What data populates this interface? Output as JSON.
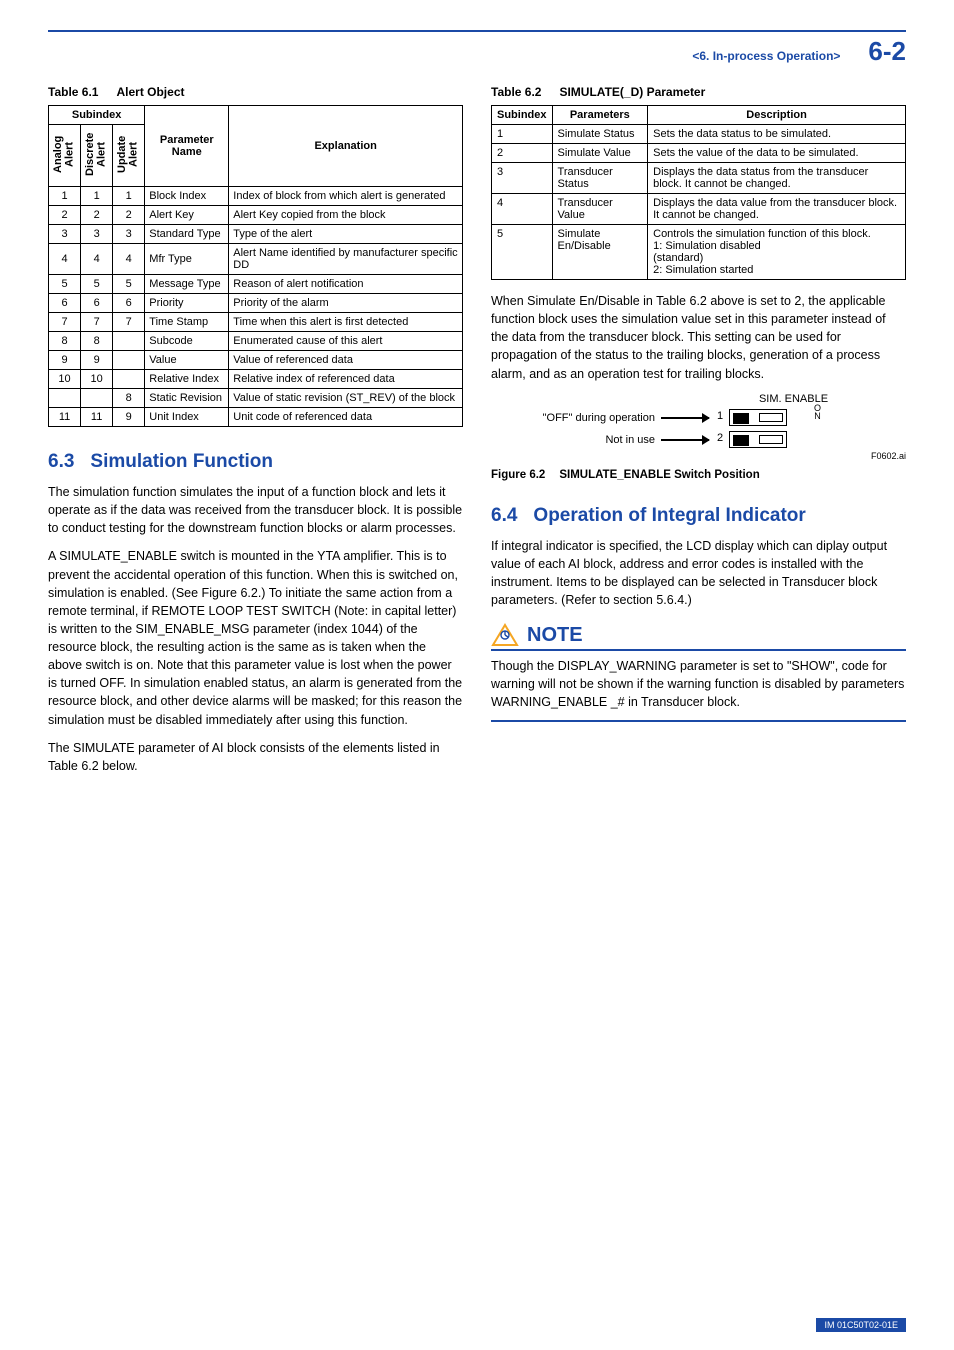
{
  "header": {
    "section": "<6.  In-process Operation>",
    "page": "6-2"
  },
  "left": {
    "table61_caption_num": "Table 6.1",
    "table61_caption_title": "Alert Object",
    "table61": {
      "subindex_head": "Subindex",
      "rot_cols": [
        "Analog Alert",
        "Discrete Alert",
        "Update Alert"
      ],
      "param_head": "Parameter Name",
      "expl_head": "Explanation",
      "rows": [
        {
          "a": "1",
          "b": "1",
          "c": "1",
          "p": "Block Index",
          "e": "Index of block from which alert is generated"
        },
        {
          "a": "2",
          "b": "2",
          "c": "2",
          "p": "Alert Key",
          "e": "Alert Key copied from the block"
        },
        {
          "a": "3",
          "b": "3",
          "c": "3",
          "p": "Standard Type",
          "e": "Type of the alert"
        },
        {
          "a": "4",
          "b": "4",
          "c": "4",
          "p": "Mfr Type",
          "e": "Alert Name identified by manufacturer specific DD"
        },
        {
          "a": "5",
          "b": "5",
          "c": "5",
          "p": "Message Type",
          "e": "Reason of alert notification"
        },
        {
          "a": "6",
          "b": "6",
          "c": "6",
          "p": "Priority",
          "e": "Priority of the alarm"
        },
        {
          "a": "7",
          "b": "7",
          "c": "7",
          "p": "Time Stamp",
          "e": "Time when this alert is first detected"
        },
        {
          "a": "8",
          "b": "8",
          "c": "",
          "p": "Subcode",
          "e": "Enumerated cause of this alert"
        },
        {
          "a": "9",
          "b": "9",
          "c": "",
          "p": "Value",
          "e": "Value of referenced data"
        },
        {
          "a": "10",
          "b": "10",
          "c": "",
          "p": "Relative Index",
          "e": "Relative index of referenced data"
        },
        {
          "a": "",
          "b": "",
          "c": "8",
          "p": "Static Revision",
          "e": "Value of static revision (ST_REV) of the block"
        },
        {
          "a": "11",
          "b": "11",
          "c": "9",
          "p": "Unit Index",
          "e": "Unit code of referenced data"
        }
      ]
    },
    "sec63_num": "6.3",
    "sec63_title": "Simulation Function",
    "para63_1": "The simulation function simulates the input of a function block and lets it operate as if the data was received from the transducer block. It is possible to conduct testing for the downstream function blocks or alarm processes.",
    "para63_2": "A SIMULATE_ENABLE switch is mounted in the YTA amplifier. This is to prevent the accidental operation of this function. When this is switched on, simulation is enabled. (See Figure 6.2.) To initiate the same action from a remote terminal, if REMOTE LOOP TEST SWITCH (Note: in capital letter) is written to the SIM_ENABLE_MSG parameter (index 1044) of the resource block, the resulting action is the same as is taken when the above switch is on. Note that this parameter value is lost when the power is turned OFF. In simulation enabled status, an alarm is generated from the resource block, and other device alarms will be masked; for this reason the simulation must be disabled immediately after using this function.",
    "para63_3": "The SIMULATE parameter of AI block consists of the elements listed in Table 6.2 below."
  },
  "right": {
    "table62_caption_num": "Table 6.2",
    "table62_caption_title": "SIMULATE(_D) Parameter",
    "table62": {
      "h1": "Subindex",
      "h2": "Parameters",
      "h3": "Description",
      "rows": [
        {
          "s": "1",
          "p": "Simulate Status",
          "d": "Sets the data status to be simulated."
        },
        {
          "s": "2",
          "p": "Simulate Value",
          "d": "Sets the value of the data to be simulated."
        },
        {
          "s": "3",
          "p": "Transducer Status",
          "d": "Displays the data status from the transducer block. It cannot be changed."
        },
        {
          "s": "4",
          "p": "Transducer Value",
          "d": "Displays the data value from the transducer block. It cannot be changed."
        },
        {
          "s": "5",
          "p": "Simulate En/Disable",
          "d": "Controls the simulation function of this block.\n    1: Simulation disabled\n        (standard)\n    2: Simulation started"
        }
      ]
    },
    "para_after_62": "When Simulate En/Disable in Table 6.2 above is set to 2, the applicable function block uses the simulation value set in this parameter instead of the data from the transducer block. This setting can be used for propagation of the status to the trailing blocks, generation of a process alarm, and as an operation test for trailing blocks.",
    "sim": {
      "title": "SIM. ENABLE",
      "row1": "\"OFF\" during operation",
      "row2": "Not in use",
      "n1": "1",
      "n2": "2",
      "on": "O\nN",
      "code": "F0602.ai"
    },
    "fig62_num": "Figure 6.2",
    "fig62_title": "SIMULATE_ENABLE Switch Position",
    "sec64_num": "6.4",
    "sec64_title": "Operation of Integral Indicator",
    "para64": "If integral indicator is specified, the LCD display which can diplay output value of each AI block, address and error codes is installed with the instrument. Items to be displayed can be selected in Transducer block parameters. (Refer to section 5.6.4.)",
    "note_label": "NOTE",
    "note_text": "Though the DISPLAY_WARNING parameter is set to \"SHOW\", code for warning will not be shown if the warning function is disabled by parameters WARNING_ENABLE _# in Transducer block."
  },
  "footer": "IM 01C50T02-01E"
}
